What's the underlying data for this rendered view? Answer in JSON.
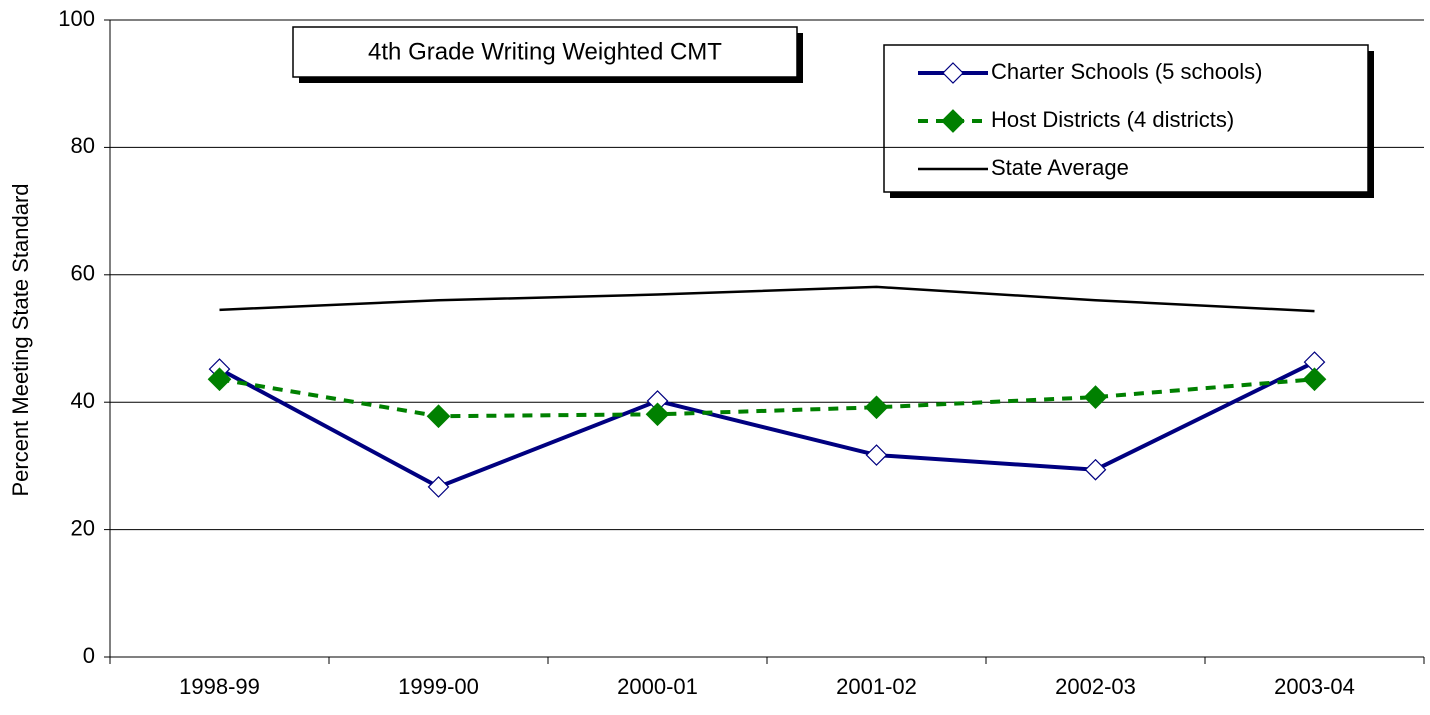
{
  "chart_data": {
    "type": "line",
    "title": "4th Grade Writing Weighted CMT",
    "y_label": "Percent Meeting State Standard",
    "categories": [
      "1998-99",
      "1999-00",
      "2000-01",
      "2001-02",
      "2002-03",
      "2003-04"
    ],
    "series": [
      {
        "name": "Charter Schools (5 schools)",
        "color": "#000080",
        "line_style": "solid",
        "marker": "diamond-open",
        "values": [
          45.2,
          26.7,
          40.2,
          31.7,
          29.4,
          46.3
        ]
      },
      {
        "name": "Host Districts (4 districts)",
        "color": "#008000",
        "line_style": "dashed",
        "marker": "diamond-filled",
        "values": [
          43.6,
          37.8,
          38.1,
          39.2,
          40.8,
          43.6
        ]
      },
      {
        "name": "State Average",
        "color": "#000000",
        "line_style": "solid",
        "marker": "none",
        "values": [
          54.5,
          56.0,
          56.9,
          58.1,
          56.0,
          54.3
        ]
      }
    ],
    "ylim": [
      0,
      100
    ],
    "yticks": [
      0,
      20,
      40,
      60,
      80,
      100
    ],
    "grid": true,
    "legend": "top-right"
  }
}
